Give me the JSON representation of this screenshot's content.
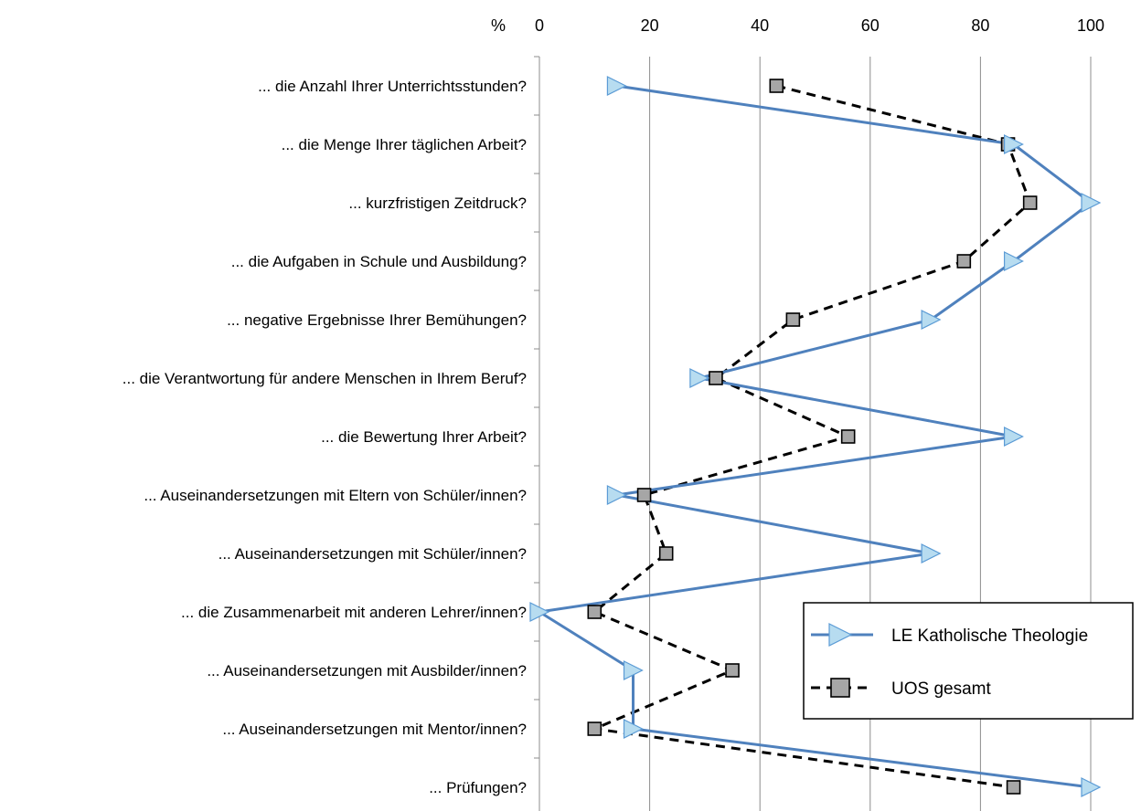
{
  "chart_data": {
    "type": "line",
    "orientation": "horizontal",
    "x_unit_label": "%",
    "xlim": [
      0,
      100
    ],
    "x_ticks": [
      0,
      20,
      40,
      60,
      80,
      100
    ],
    "grid": "vertical",
    "legend_position": "bottom-right",
    "categories": [
      "... die Anzahl Ihrer Unterrichtsstunden?",
      "... die Menge Ihrer täglichen Arbeit?",
      "... kurzfristigen Zeitdruck?",
      "... die Aufgaben in Schule und Ausbildung?",
      "... negative Ergebnisse Ihrer Bemühungen?",
      "... die Verantwortung für andere Menschen in Ihrem Beruf?",
      "... die Bewertung Ihrer Arbeit?",
      "... Auseinandersetzungen mit Eltern von Schüler/innen?",
      "... Auseinandersetzungen mit Schüler/innen?",
      "... die Zusammenarbeit mit anderen Lehrer/innen?",
      "... Auseinandersetzungen mit Ausbilder/innen?",
      "... Auseinandersetzungen mit Mentor/innen?",
      "... Prüfungen?"
    ],
    "series": [
      {
        "name": "LE Katholische Theologie",
        "color": "#4f81bd",
        "marker": "triangle-right",
        "marker_fill": "#b7dcf0",
        "line_style": "solid",
        "values": [
          14,
          86,
          100,
          86,
          71,
          29,
          86,
          14,
          71,
          0,
          17,
          17,
          100
        ]
      },
      {
        "name": "UOS gesamt",
        "color": "#000000",
        "marker": "square",
        "marker_fill": "#a6a6a6",
        "line_style": "dashed",
        "values": [
          43,
          85,
          89,
          77,
          46,
          32,
          56,
          19,
          23,
          10,
          35,
          10,
          86
        ]
      }
    ]
  }
}
